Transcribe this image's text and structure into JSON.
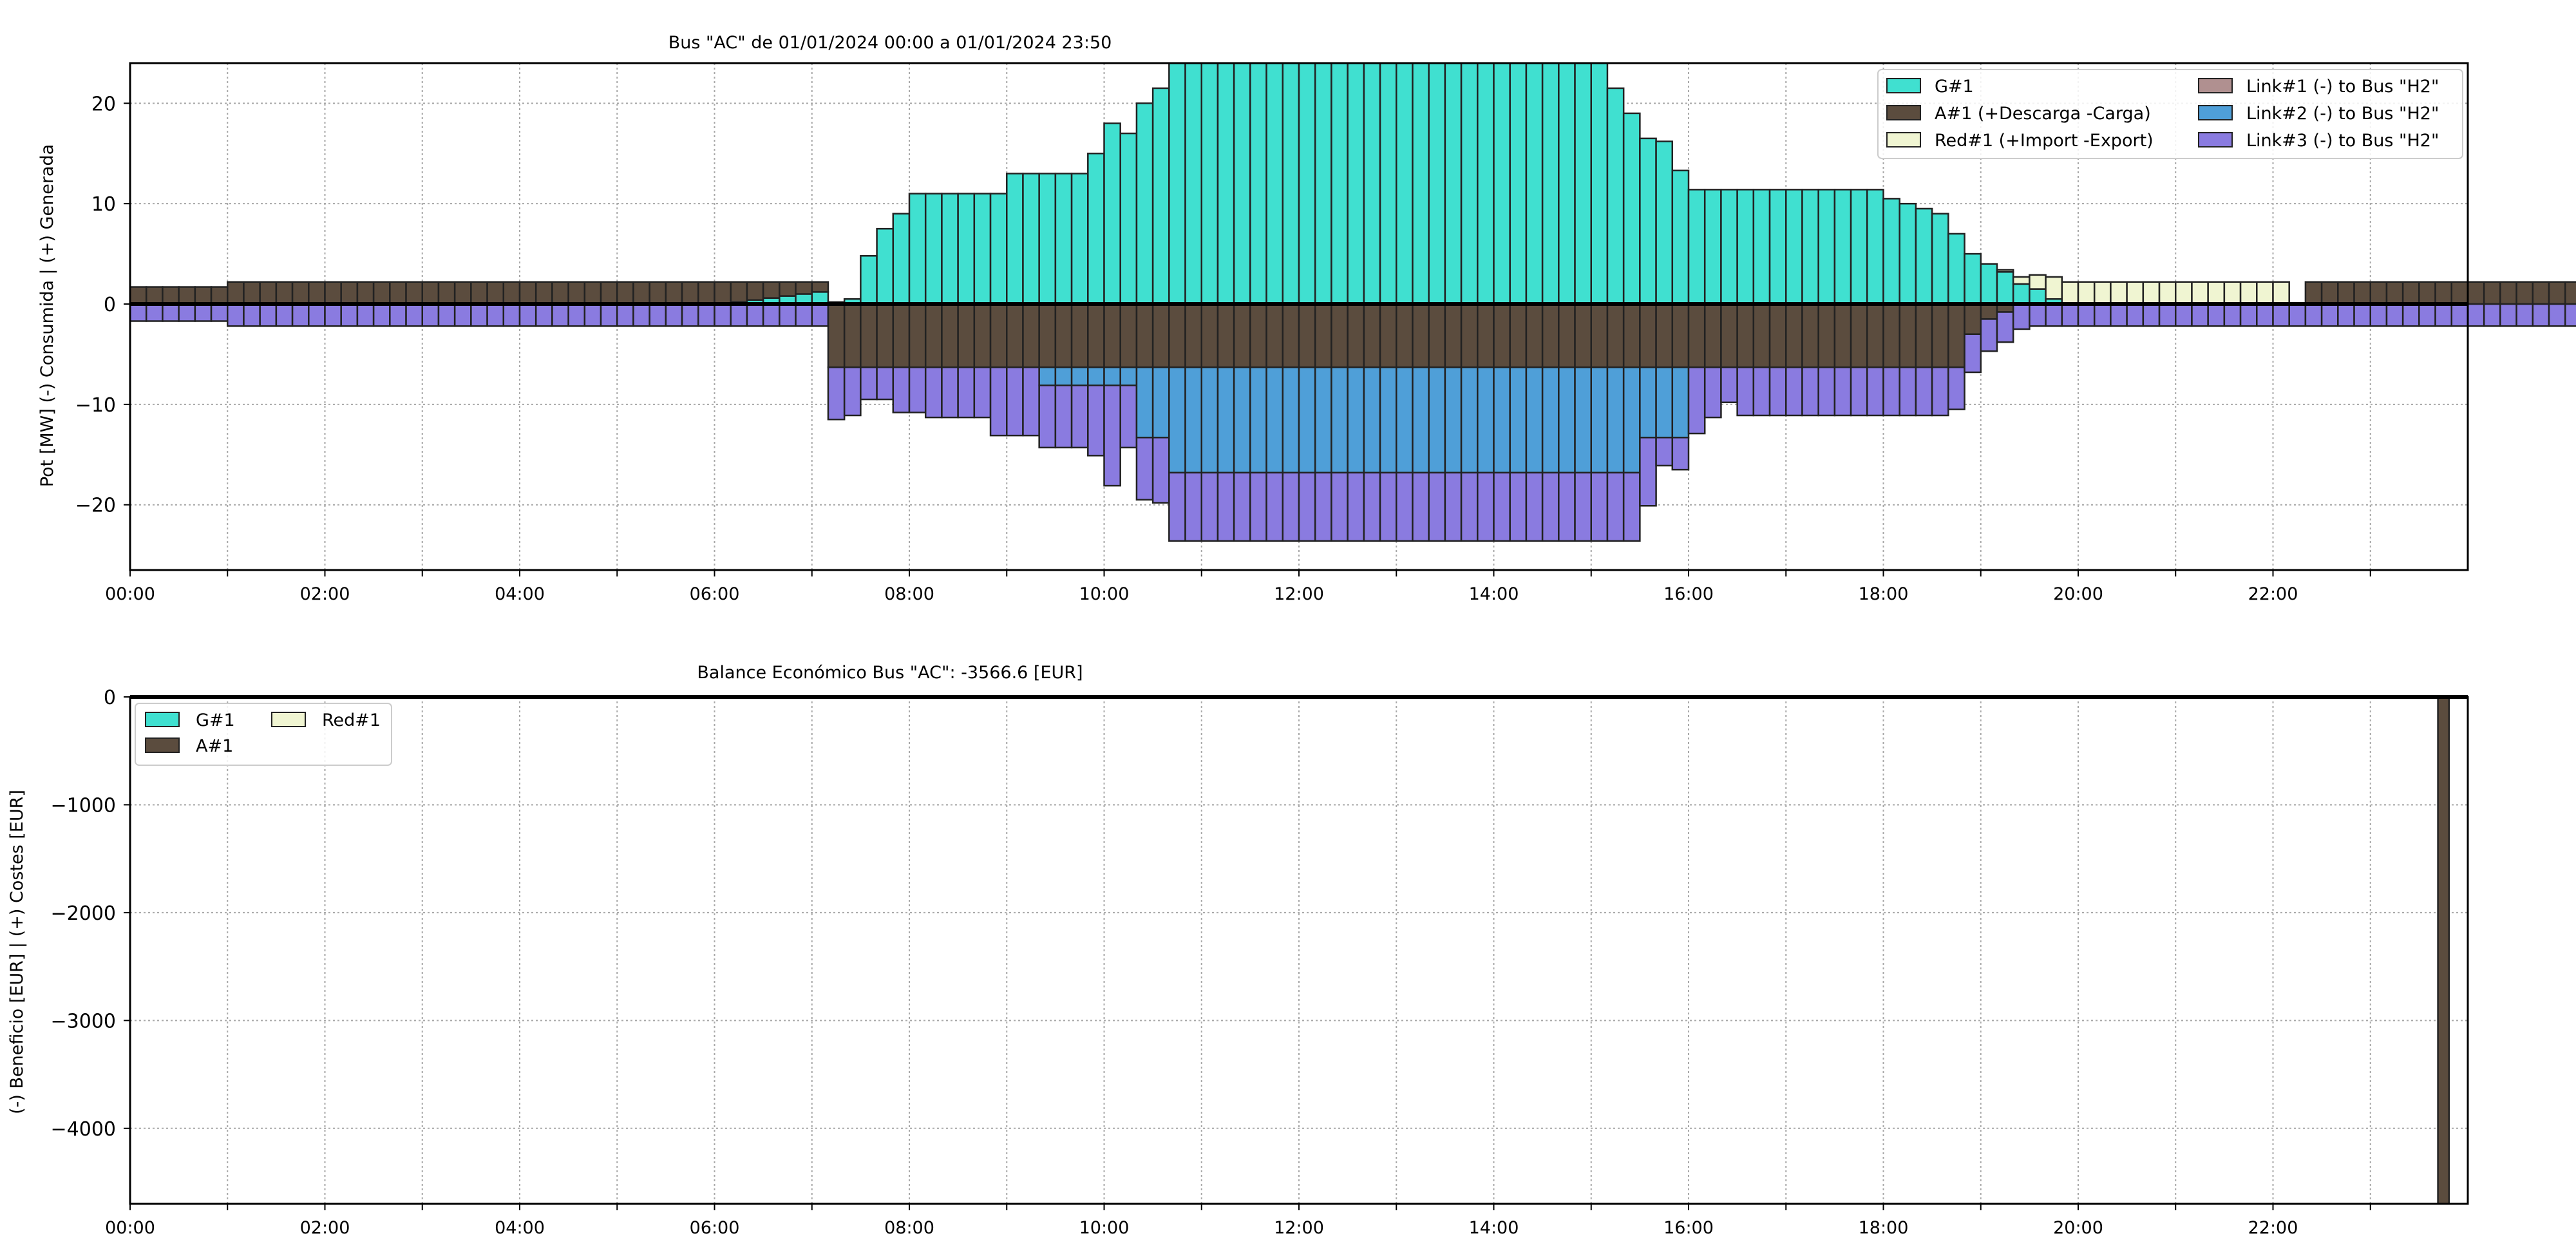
{
  "chart_data": [
    {
      "type": "bar",
      "stacked": true,
      "title": "Bus \"AC\" de 01/01/2024 00:00 a 01/01/2024 23:50",
      "ylabel": "Pot [MW] (-) Consumida | (+) Generada",
      "xlabel": "",
      "ylim": [
        -26.5,
        24
      ],
      "xlim": [
        "00:00",
        "24:00"
      ],
      "yticks": [
        -20,
        -10,
        0,
        10,
        20
      ],
      "ytick_labels": [
        "−20",
        "−10",
        "0",
        "10",
        "20"
      ],
      "xtick_labels": [
        "00:00",
        "02:00",
        "04:00",
        "06:00",
        "08:00",
        "10:00",
        "12:00",
        "14:00",
        "16:00",
        "18:00",
        "20:00",
        "22:00"
      ],
      "grid": true,
      "legend_position": "top-right",
      "bin_minutes": 10,
      "series": [
        {
          "name": "G#1",
          "color": "#40e0d0",
          "values": [
            0,
            0,
            0,
            0,
            0,
            0,
            0,
            0,
            0,
            0,
            0,
            0,
            0,
            0,
            0,
            0,
            0,
            0,
            0,
            0,
            0,
            0,
            0,
            0,
            0,
            0,
            0,
            0,
            0,
            0,
            0,
            0,
            0,
            0,
            0,
            0,
            0,
            0.2,
            0.4,
            0.6,
            0.8,
            1.0,
            1.2,
            0.2,
            0.5,
            4.8,
            7.5,
            9,
            11,
            11,
            11,
            11,
            11,
            11,
            13,
            13,
            13,
            13,
            13,
            15,
            18,
            17,
            20,
            21.5,
            24,
            24,
            24,
            24,
            24,
            24,
            24,
            24,
            24,
            24,
            24,
            24,
            24,
            24,
            24,
            24,
            24,
            24,
            24,
            24,
            24,
            24,
            24,
            24,
            24,
            24,
            24,
            21.5,
            19,
            16.5,
            16.2,
            13.3,
            11.4,
            11.4,
            11.4,
            11.4,
            11.4,
            11.4,
            11.4,
            11.4,
            11.4,
            11.4,
            11.4,
            11.4,
            10.5,
            10,
            9.5,
            9,
            7,
            5,
            4,
            3.2,
            2,
            1.5,
            0.5,
            0,
            0,
            0,
            0,
            0,
            0,
            0,
            0,
            0,
            0,
            0,
            0,
            0,
            0,
            0,
            0,
            0,
            0,
            0,
            0,
            0,
            0,
            0,
            0,
            0,
            0,
            0,
            0,
            0,
            0,
            0,
            0,
            0,
            0,
            0,
            0,
            0,
            0,
            0,
            0,
            0,
            0,
            0,
            0,
            0,
            0,
            0,
            0,
            0,
            0,
            0
          ]
        },
        {
          "name": "A#1 (+Descarga -Carga)",
          "color": "#5b4c3e",
          "values": [
            1.7,
            1.7,
            1.7,
            1.7,
            1.7,
            1.7,
            2.2,
            2.2,
            2.2,
            2.2,
            2.2,
            2.2,
            2.2,
            2.2,
            2.2,
            2.2,
            2.2,
            2.2,
            2.2,
            2.2,
            2.2,
            2.2,
            2.2,
            2.2,
            2.2,
            2.2,
            2.2,
            2.2,
            2.2,
            2.2,
            2.2,
            2.2,
            2.2,
            2.2,
            2.2,
            2.2,
            2.2,
            2.0,
            1.8,
            1.6,
            1.4,
            1.2,
            1.0,
            -6.3,
            -6.3,
            -6.3,
            -6.3,
            -6.3,
            -6.3,
            -6.3,
            -6.3,
            -6.3,
            -6.3,
            -6.3,
            -6.3,
            -6.3,
            -6.3,
            -6.3,
            -6.3,
            -6.3,
            -6.3,
            -6.3,
            -6.3,
            -6.3,
            -6.3,
            -6.3,
            -6.3,
            -6.3,
            -6.3,
            -6.3,
            -6.3,
            -6.3,
            -6.3,
            -6.3,
            -6.3,
            -6.3,
            -6.3,
            -6.3,
            -6.3,
            -6.3,
            -6.3,
            -6.3,
            -6.3,
            -6.3,
            -6.3,
            -6.3,
            -6.3,
            -6.3,
            -6.3,
            -6.3,
            -6.3,
            -6.3,
            -6.3,
            -6.3,
            -6.3,
            -6.3,
            -6.3,
            -6.3,
            -6.3,
            -6.3,
            -6.3,
            -6.3,
            -6.3,
            -6.3,
            -6.3,
            -6.3,
            -6.3,
            -6.3,
            -6.3,
            -6.3,
            -6.3,
            -6.3,
            -6.3,
            -3.0,
            -1.5,
            -0.8,
            0,
            0,
            0,
            0,
            0,
            0,
            0,
            0,
            0,
            0,
            0,
            0,
            0,
            0,
            0,
            0,
            0,
            0,
            2.2,
            2.2,
            2.2,
            2.2,
            2.2,
            2.2,
            2.2,
            2.2,
            2.2,
            2.2,
            2.2,
            2.2,
            2.2,
            2.2,
            2.2,
            2.2,
            2.2,
            2.2,
            2.2,
            2.2,
            2.2,
            0,
            0,
            0,
            0,
            0,
            0,
            0,
            0,
            0,
            0,
            0,
            0,
            0,
            0
          ]
        },
        {
          "name": "Red#1 (+Import -Export)",
          "color": "#f0f5d2",
          "values": [
            0,
            0,
            0,
            0,
            0,
            0,
            0,
            0,
            0,
            0,
            0,
            0,
            0,
            0,
            0,
            0,
            0,
            0,
            0,
            0,
            0,
            0,
            0,
            0,
            0,
            0,
            0,
            0,
            0,
            0,
            0,
            0,
            0,
            0,
            0,
            0,
            0,
            0,
            0,
            0,
            0,
            0,
            0,
            0,
            0,
            0,
            0,
            0,
            0,
            0,
            0,
            0,
            0,
            0,
            0,
            0,
            0,
            0,
            0,
            0,
            0,
            0,
            0,
            0,
            0,
            0,
            0,
            0,
            0,
            0,
            0,
            0,
            0,
            0,
            0,
            0,
            0,
            0,
            0,
            0,
            0,
            0,
            0,
            0,
            0,
            0,
            0,
            0,
            0,
            0,
            0,
            0,
            0,
            0,
            0,
            0,
            0,
            0,
            0,
            0,
            0,
            0,
            0,
            0,
            0,
            0,
            0,
            0,
            0,
            0,
            0,
            0,
            0,
            0,
            0,
            0.2,
            0.7,
            1.4,
            2.2,
            2.2,
            2.2,
            2.2,
            2.2,
            2.2,
            2.2,
            2.2,
            2.2,
            2.2,
            2.2,
            2.2,
            2.2,
            2.2,
            2.2,
            0,
            0,
            0,
            0,
            0,
            0,
            0,
            0,
            0,
            0,
            0,
            0,
            0,
            0,
            0,
            0,
            0,
            0,
            0,
            0,
            0,
            2.2,
            0,
            0,
            0,
            0,
            0,
            0,
            0,
            0,
            0,
            0,
            0,
            0,
            0
          ]
        },
        {
          "name": "Link#1 (-) to Bus \"H2\"",
          "color": "#b09090",
          "values": [
            0,
            0,
            0,
            0,
            0,
            0,
            0,
            0,
            0,
            0,
            0,
            0,
            0,
            0,
            0,
            0,
            0,
            0,
            0,
            0,
            0,
            0,
            0,
            0,
            0,
            0,
            0,
            0,
            0,
            0,
            0,
            0,
            0,
            0,
            0,
            0,
            0,
            0,
            0,
            0,
            0,
            0,
            0,
            0,
            0,
            0,
            0,
            0,
            0,
            0,
            0,
            0,
            0,
            0,
            0,
            0,
            0,
            0,
            0,
            0,
            0,
            0,
            0,
            0,
            0,
            0,
            0,
            0,
            0,
            0,
            0,
            0,
            0,
            0,
            0,
            0,
            0,
            0,
            0,
            0,
            0,
            0,
            0,
            0,
            0,
            0,
            0,
            0,
            0,
            0,
            0,
            0,
            0,
            0,
            0,
            0,
            0,
            0,
            0,
            0,
            0,
            0,
            0,
            0,
            0,
            0,
            0,
            0,
            0,
            0,
            0,
            0,
            0,
            0,
            0,
            0,
            0,
            0,
            0,
            0,
            0,
            0,
            0,
            0,
            0,
            0,
            0,
            0,
            0,
            0,
            0,
            0,
            0,
            0,
            0,
            0,
            0,
            0,
            0,
            0,
            0,
            0,
            0,
            0,
            0,
            0,
            0,
            0,
            0,
            0,
            0,
            0,
            0,
            0,
            0,
            0,
            0,
            0,
            0,
            0,
            0,
            0,
            0,
            0
          ]
        },
        {
          "name": "Link#2 (-) to Bus \"H2\"",
          "color": "#4f9fd8",
          "values": [
            0,
            0,
            0,
            0,
            0,
            0,
            0,
            0,
            0,
            0,
            0,
            0,
            0,
            0,
            0,
            0,
            0,
            0,
            0,
            0,
            0,
            0,
            0,
            0,
            0,
            0,
            0,
            0,
            0,
            0,
            0,
            0,
            0,
            0,
            0,
            0,
            0,
            0,
            0,
            0,
            0,
            0,
            0,
            0,
            0,
            0,
            0,
            0,
            0,
            0,
            0,
            0,
            0,
            0,
            0,
            0,
            -1.8,
            -1.8,
            -1.8,
            -1.8,
            -1.8,
            -1.8,
            -7.0,
            -7.0,
            -10.5,
            -10.5,
            -10.5,
            -10.5,
            -10.5,
            -10.5,
            -10.5,
            -10.5,
            -10.5,
            -10.5,
            -10.5,
            -10.5,
            -10.5,
            -10.5,
            -10.5,
            -10.5,
            -10.5,
            -10.5,
            -10.5,
            -10.5,
            -10.5,
            -10.5,
            -10.5,
            -10.5,
            -10.5,
            -10.5,
            -10.5,
            -10.5,
            -10.5,
            -7.0,
            -7.0,
            -7.0,
            0,
            0,
            0,
            0,
            0,
            0,
            0,
            0,
            0,
            0,
            0,
            0,
            0,
            0,
            0,
            0,
            0,
            0,
            0,
            0,
            0,
            0,
            0,
            0,
            0,
            0,
            0,
            0,
            0,
            0,
            0,
            0,
            0,
            0,
            0,
            0,
            0,
            0,
            0,
            0,
            0,
            0,
            0,
            0,
            0,
            0,
            0,
            0,
            0,
            0,
            0,
            0,
            0,
            0,
            0,
            0,
            0,
            0,
            0,
            0,
            0,
            0,
            0,
            0,
            0,
            0,
            0,
            0,
            0,
            0,
            0,
            0,
            0,
            0
          ]
        },
        {
          "name": "Link#3 (-) to Bus \"H2\"",
          "color": "#8a7be0",
          "values": [
            -1.7,
            -1.7,
            -1.7,
            -1.7,
            -1.7,
            -1.7,
            -2.2,
            -2.2,
            -2.2,
            -2.2,
            -2.2,
            -2.2,
            -2.2,
            -2.2,
            -2.2,
            -2.2,
            -2.2,
            -2.2,
            -2.2,
            -2.2,
            -2.2,
            -2.2,
            -2.2,
            -2.2,
            -2.2,
            -2.2,
            -2.2,
            -2.2,
            -2.2,
            -2.2,
            -2.2,
            -2.2,
            -2.2,
            -2.2,
            -2.2,
            -2.2,
            -2.2,
            -2.2,
            -2.2,
            -2.2,
            -2.2,
            -2.2,
            -2.2,
            -5.2,
            -4.8,
            -3.2,
            -3.2,
            -4.5,
            -4.5,
            -5.0,
            -5.0,
            -5.0,
            -5.0,
            -6.8,
            -6.8,
            -6.8,
            -6.2,
            -6.2,
            -6.2,
            -7.0,
            -10.0,
            -6.2,
            -6.2,
            -6.5,
            -6.8,
            -6.8,
            -6.8,
            -6.8,
            -6.8,
            -6.8,
            -6.8,
            -6.8,
            -6.8,
            -6.8,
            -6.8,
            -6.8,
            -6.8,
            -6.8,
            -6.8,
            -6.8,
            -6.8,
            -6.8,
            -6.8,
            -6.8,
            -6.8,
            -6.8,
            -6.8,
            -6.8,
            -6.8,
            -6.8,
            -6.8,
            -6.8,
            -6.8,
            -6.8,
            -2.8,
            -3.2,
            -6.6,
            -5.0,
            -3.5,
            -4.8,
            -4.8,
            -4.8,
            -4.8,
            -4.8,
            -4.8,
            -4.8,
            -4.8,
            -4.8,
            -4.8,
            -4.8,
            -4.8,
            -4.8,
            -4.2,
            -3.8,
            -3.2,
            -3.0,
            -2.5,
            -2.2,
            -2.2,
            -2.2,
            -2.2,
            -2.2,
            -2.2,
            -2.2,
            -2.2,
            -2.2,
            -2.2,
            -2.2,
            -2.2,
            -2.2,
            -2.2,
            -2.2,
            -2.2,
            -2.2,
            -2.2,
            -2.2,
            -2.2,
            -2.2,
            -2.2,
            -2.2,
            -2.2,
            -2.2,
            -2.2,
            -2.2,
            -2.2,
            -2.2,
            -2.2,
            -2.2,
            -2.2,
            -2.2,
            -2.2,
            -2.2,
            -2.2,
            -2.2,
            -2.2,
            -2.2,
            -2.2,
            -2.2,
            0,
            0,
            0,
            0,
            0,
            0,
            0,
            0,
            0,
            0,
            0,
            0,
            0,
            0
          ]
        }
      ]
    },
    {
      "type": "bar",
      "title": "Balance Económico Bus \"AC\": -3566.6 [EUR]",
      "ylabel": "(-) Beneficio [EUR] | (+) Costes [EUR]",
      "xlabel": "",
      "ylim": [
        -4700,
        0
      ],
      "xlim": [
        "00:00",
        "24:00"
      ],
      "yticks": [
        -4000,
        -3000,
        -2000,
        -1000,
        0
      ],
      "ytick_labels": [
        "−4000",
        "−3000",
        "−2000",
        "−1000",
        "0"
      ],
      "xtick_labels": [
        "00:00",
        "02:00",
        "04:00",
        "06:00",
        "08:00",
        "10:00",
        "12:00",
        "14:00",
        "16:00",
        "18:00",
        "20:00",
        "22:00"
      ],
      "grid": true,
      "legend_position": "top-left",
      "bars": [
        {
          "series": "A#1",
          "x": "23:40",
          "width_minutes": 10,
          "value": -4700
        }
      ],
      "series": [
        {
          "name": "G#1",
          "color": "#40e0d0"
        },
        {
          "name": "A#1",
          "color": "#5b4c3e"
        },
        {
          "name": "Red#1",
          "color": "#f0f5d2"
        }
      ]
    }
  ]
}
